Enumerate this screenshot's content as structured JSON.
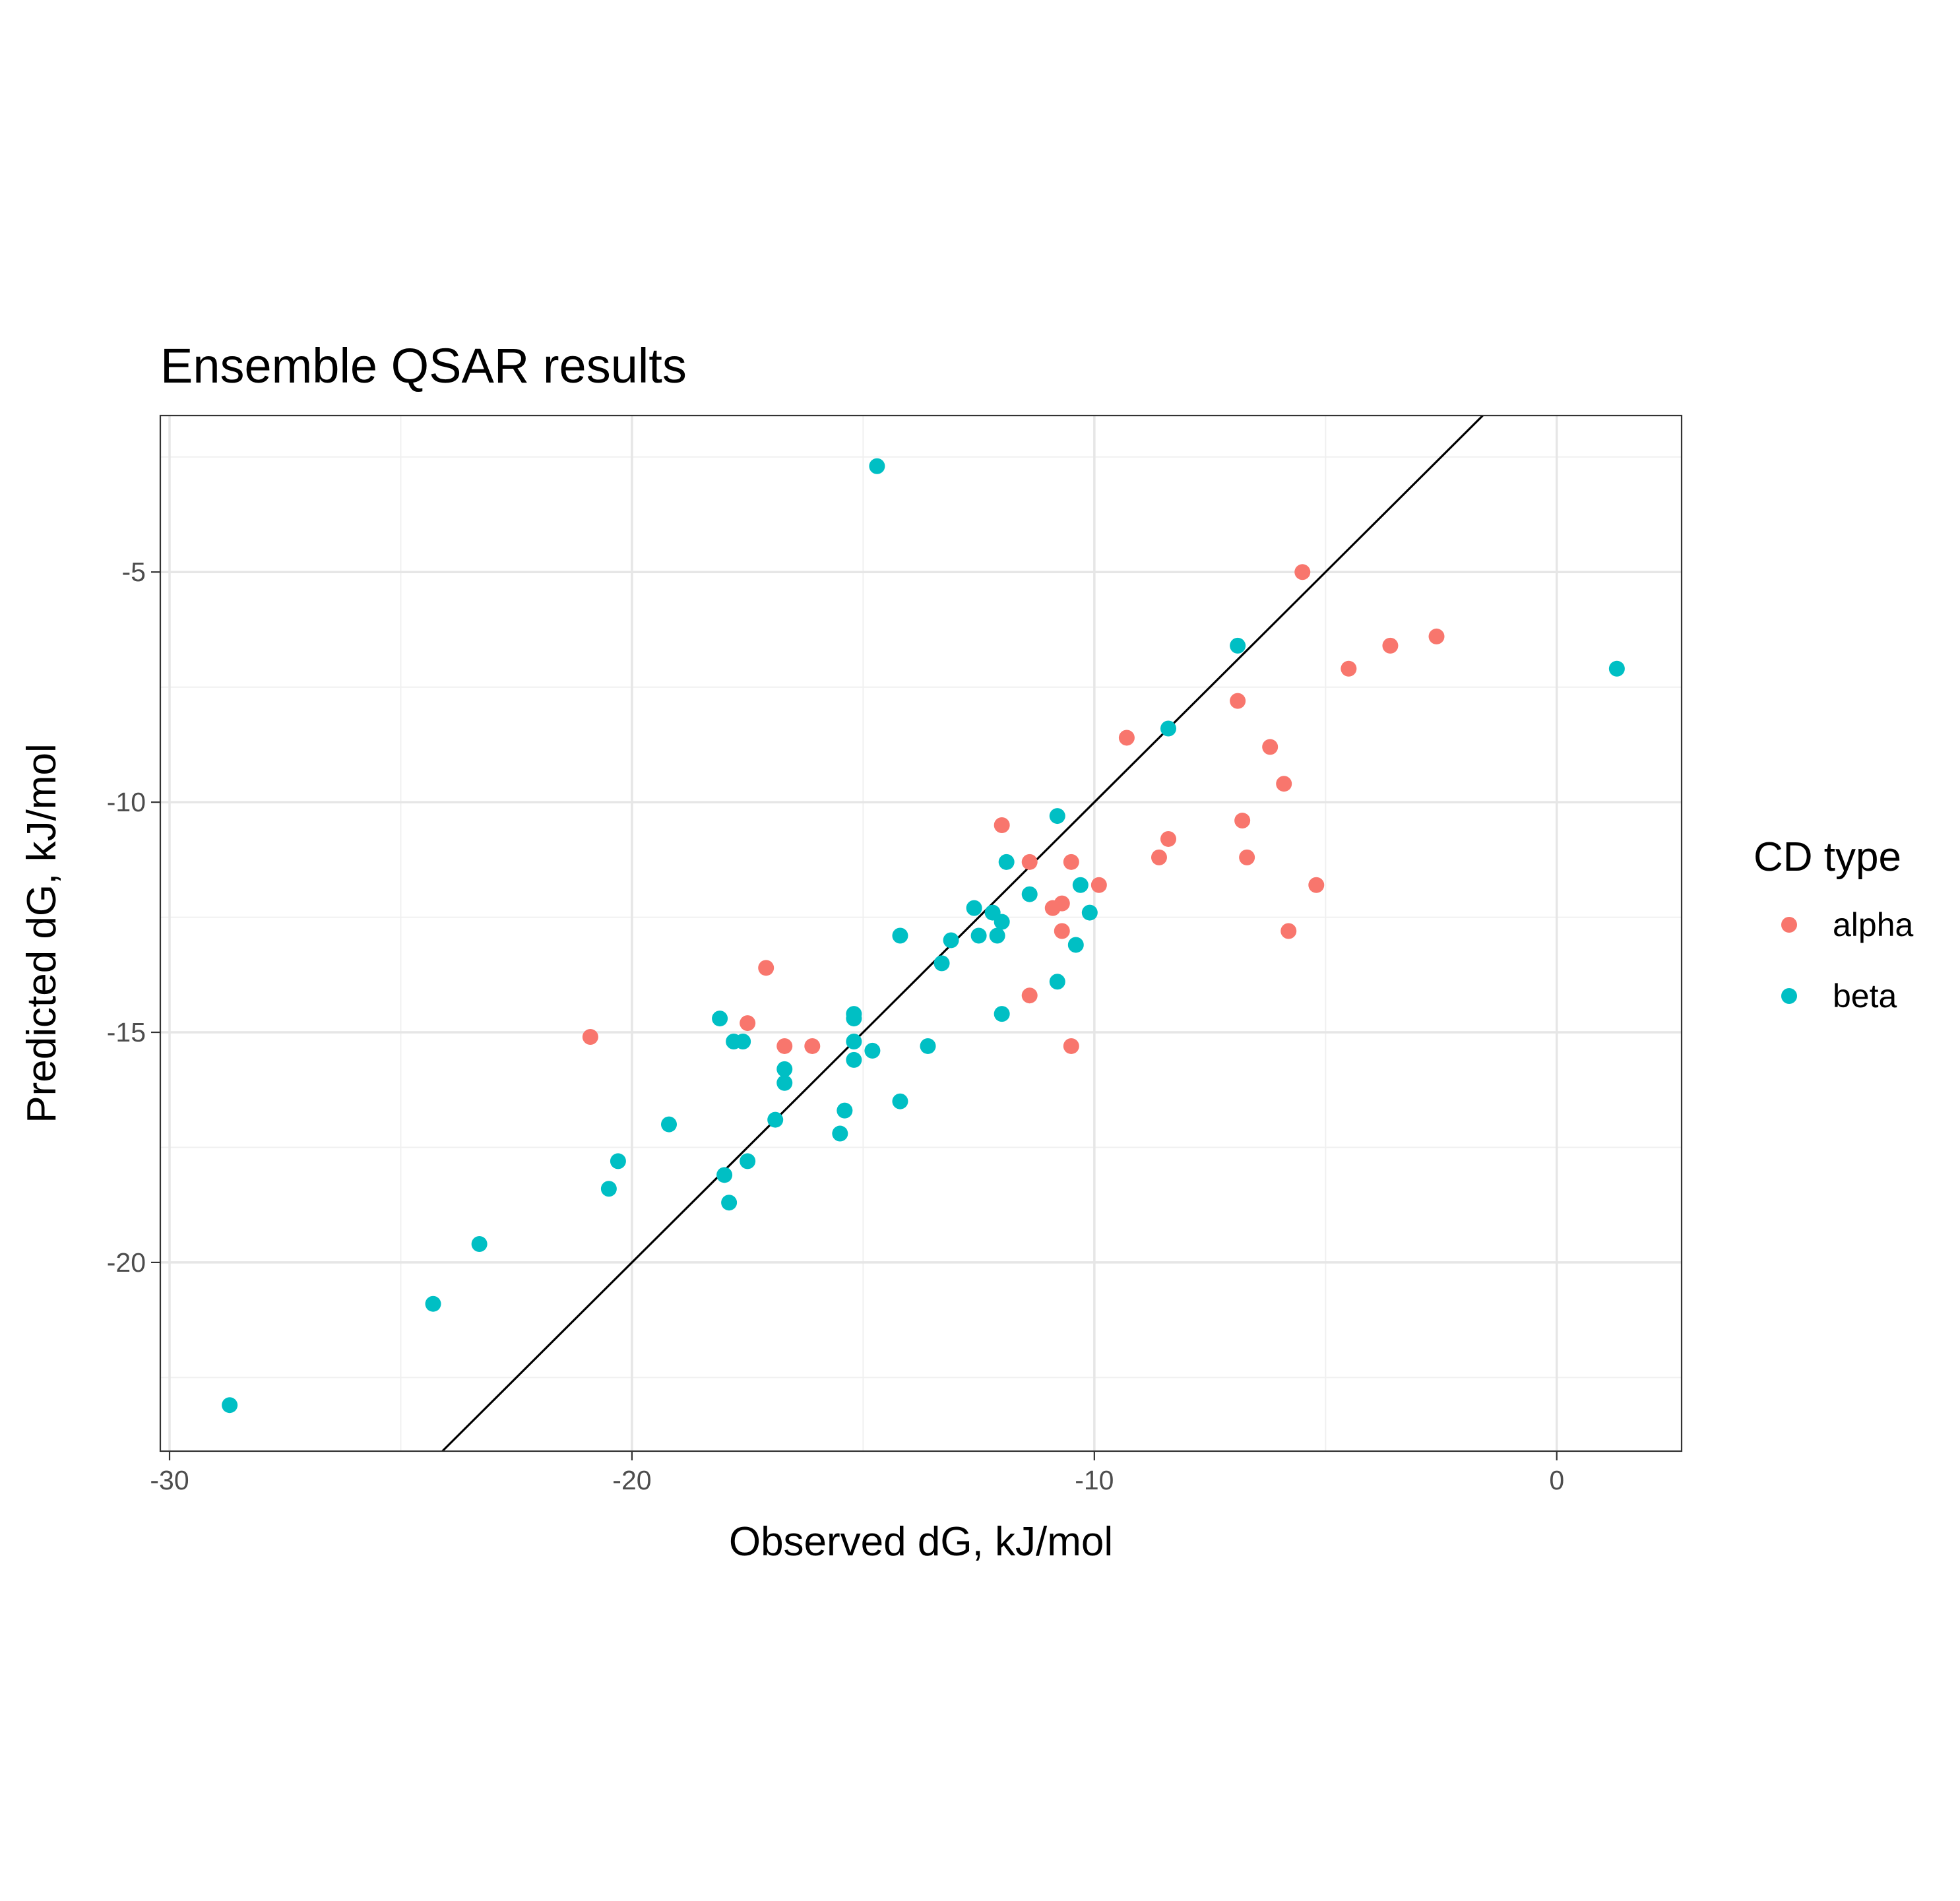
{
  "chart_data": {
    "type": "scatter",
    "title": "Ensemble QSAR results",
    "xlabel": "Observed dG, kJ/mol",
    "ylabel": "Predicted dG, kJ/mol",
    "xlim": [
      -30.2,
      2.7
    ],
    "ylim": [
      -24.1,
      -1.6
    ],
    "x_ticks": [
      -30,
      -20,
      -10,
      0
    ],
    "x_tick_labels": [
      "-30",
      "-20",
      "-10",
      "0"
    ],
    "y_ticks": [
      -20,
      -15,
      -10,
      -5
    ],
    "y_tick_labels": [
      "-20",
      "-15",
      "-10",
      "-5"
    ],
    "grid": true,
    "reference_line": {
      "slope": 1,
      "intercept": 0
    },
    "legend": {
      "title": "CD type",
      "position": "right"
    },
    "series": [
      {
        "name": "alpha",
        "color": "#F8766D",
        "points": [
          [
            -5.5,
            -5.0
          ],
          [
            -2.6,
            -6.4
          ],
          [
            -3.6,
            -6.6
          ],
          [
            -4.5,
            -7.1
          ],
          [
            -6.9,
            -7.8
          ],
          [
            -9.3,
            -8.6
          ],
          [
            -6.2,
            -8.8
          ],
          [
            -5.9,
            -9.6
          ],
          [
            -12.0,
            -10.5
          ],
          [
            -6.8,
            -10.4
          ],
          [
            -8.4,
            -10.8
          ],
          [
            -11.4,
            -11.3
          ],
          [
            -10.5,
            -11.3
          ],
          [
            -8.6,
            -11.2
          ],
          [
            -6.7,
            -11.2
          ],
          [
            -5.2,
            -11.8
          ],
          [
            -9.9,
            -11.8
          ],
          [
            -10.9,
            -12.3
          ],
          [
            -10.7,
            -12.2
          ],
          [
            -10.7,
            -12.8
          ],
          [
            -5.8,
            -12.8
          ],
          [
            -17.1,
            -13.6
          ],
          [
            -11.4,
            -14.2
          ],
          [
            -17.5,
            -14.8
          ],
          [
            -20.9,
            -15.1
          ],
          [
            -16.7,
            -15.3
          ],
          [
            -16.1,
            -15.3
          ],
          [
            -10.5,
            -15.3
          ]
        ]
      },
      {
        "name": "beta",
        "color": "#00BFC4",
        "points": [
          [
            -14.7,
            -2.7
          ],
          [
            -6.9,
            -6.6
          ],
          [
            1.3,
            -7.1
          ],
          [
            -8.4,
            -8.4
          ],
          [
            -10.8,
            -10.3
          ],
          [
            -11.9,
            -11.3
          ],
          [
            -10.3,
            -11.8
          ],
          [
            -11.4,
            -12.0
          ],
          [
            -12.6,
            -12.3
          ],
          [
            -12.2,
            -12.4
          ],
          [
            -10.1,
            -12.4
          ],
          [
            -12.0,
            -12.6
          ],
          [
            -14.2,
            -12.9
          ],
          [
            -13.1,
            -13.0
          ],
          [
            -12.1,
            -12.9
          ],
          [
            -12.5,
            -12.9
          ],
          [
            -10.4,
            -13.1
          ],
          [
            -13.3,
            -13.5
          ],
          [
            -10.8,
            -13.9
          ],
          [
            -15.2,
            -14.6
          ],
          [
            -15.2,
            -14.7
          ],
          [
            -12.0,
            -14.6
          ],
          [
            -18.1,
            -14.7
          ],
          [
            -17.8,
            -15.2
          ],
          [
            -17.6,
            -15.2
          ],
          [
            -15.2,
            -15.2
          ],
          [
            -13.6,
            -15.3
          ],
          [
            -14.8,
            -15.4
          ],
          [
            -15.2,
            -15.6
          ],
          [
            -16.7,
            -15.8
          ],
          [
            -16.7,
            -16.1
          ],
          [
            -14.2,
            -16.5
          ],
          [
            -15.4,
            -16.7
          ],
          [
            -16.9,
            -16.9
          ],
          [
            -19.2,
            -17.0
          ],
          [
            -15.5,
            -17.2
          ],
          [
            -17.5,
            -17.8
          ],
          [
            -20.3,
            -17.8
          ],
          [
            -18.0,
            -18.1
          ],
          [
            -20.5,
            -18.4
          ],
          [
            -17.9,
            -18.7
          ],
          [
            -23.3,
            -19.6
          ],
          [
            -24.3,
            -20.9
          ],
          [
            -28.7,
            -23.1
          ]
        ]
      }
    ]
  }
}
